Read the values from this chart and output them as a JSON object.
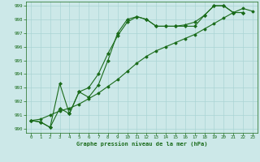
{
  "title": "Graphe pression niveau de la mer (hPa)",
  "bg_color": "#cce8e8",
  "grid_color": "#aad4d4",
  "line_color": "#1a6b1a",
  "xlim": [
    -0.5,
    23.5
  ],
  "ylim": [
    989.7,
    999.3
  ],
  "xticks": [
    0,
    1,
    2,
    3,
    4,
    5,
    6,
    7,
    8,
    9,
    10,
    11,
    12,
    13,
    14,
    15,
    16,
    17,
    18,
    19,
    20,
    21,
    22,
    23
  ],
  "yticks": [
    990,
    991,
    992,
    993,
    994,
    995,
    996,
    997,
    998,
    999
  ],
  "line1_x": [
    0,
    1,
    2,
    3,
    4,
    5,
    6,
    7,
    8,
    9,
    10,
    11,
    12,
    13,
    14,
    15,
    16,
    17,
    18,
    19,
    20,
    21,
    22
  ],
  "line1_y": [
    990.6,
    990.5,
    990.1,
    993.3,
    991.1,
    992.7,
    992.3,
    993.2,
    995.0,
    997.0,
    998.0,
    998.2,
    998.0,
    997.5,
    997.5,
    997.5,
    997.5,
    997.5,
    998.3,
    999.0,
    999.0,
    998.5,
    998.5
  ],
  "line2_x": [
    0,
    1,
    2,
    3,
    4,
    5,
    6,
    7,
    8,
    9,
    10,
    11,
    12,
    13,
    14,
    15,
    16,
    17,
    18,
    19,
    20,
    21,
    22
  ],
  "line2_y": [
    990.6,
    990.5,
    990.1,
    991.5,
    991.1,
    992.7,
    993.0,
    994.0,
    995.5,
    996.8,
    997.8,
    998.2,
    998.0,
    997.5,
    997.5,
    997.5,
    997.6,
    997.8,
    998.3,
    999.0,
    999.0,
    998.5,
    998.5
  ],
  "line3_x": [
    0,
    1,
    2,
    3,
    4,
    5,
    6,
    7,
    8,
    9,
    10,
    11,
    12,
    13,
    14,
    15,
    16,
    17,
    18,
    19,
    20,
    21,
    22,
    23
  ],
  "line3_y": [
    990.6,
    990.7,
    991.0,
    991.3,
    991.5,
    991.8,
    992.2,
    992.6,
    993.1,
    993.6,
    994.2,
    994.8,
    995.3,
    995.7,
    996.0,
    996.3,
    996.6,
    996.9,
    997.3,
    997.7,
    998.1,
    998.5,
    998.8,
    998.6
  ]
}
